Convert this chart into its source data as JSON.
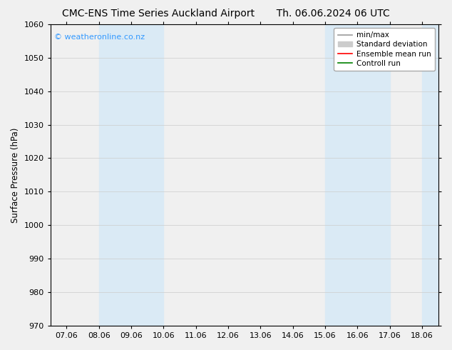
{
  "title_left": "CMC-ENS Time Series Auckland Airport",
  "title_right": "Th. 06.06.2024 06 UTC",
  "ylabel": "Surface Pressure (hPa)",
  "ylim": [
    970,
    1060
  ],
  "yticks": [
    970,
    980,
    990,
    1000,
    1010,
    1020,
    1030,
    1040,
    1050,
    1060
  ],
  "xtick_labels": [
    "07.06",
    "08.06",
    "09.06",
    "10.06",
    "11.06",
    "12.06",
    "13.06",
    "14.06",
    "15.06",
    "16.06",
    "17.06",
    "18.06"
  ],
  "xtick_positions": [
    0,
    1,
    2,
    3,
    4,
    5,
    6,
    7,
    8,
    9,
    10,
    11
  ],
  "xlim": [
    -0.5,
    11.5
  ],
  "shaded_bands": [
    {
      "xmin": 1,
      "xmax": 3,
      "color": "#daeaf5"
    },
    {
      "xmin": 8,
      "xmax": 10,
      "color": "#daeaf5"
    },
    {
      "xmin": 11,
      "xmax": 11.5,
      "color": "#daeaf5"
    }
  ],
  "watermark": "© weatheronline.co.nz",
  "watermark_color": "#3399ff",
  "plot_bg_color": "#f0f0f0",
  "fig_bg_color": "#f0f0f0",
  "legend_entries": [
    {
      "label": "min/max",
      "color": "#999999",
      "lw": 1.2,
      "style": "-"
    },
    {
      "label": "Standard deviation",
      "color": "#cccccc",
      "lw": 6,
      "style": "-"
    },
    {
      "label": "Ensemble mean run",
      "color": "#ff0000",
      "lw": 1.2,
      "style": "-"
    },
    {
      "label": "Controll run",
      "color": "#008000",
      "lw": 1.2,
      "style": "-"
    }
  ],
  "title_fontsize": 10,
  "axis_label_fontsize": 8.5,
  "tick_fontsize": 8,
  "legend_fontsize": 7.5,
  "watermark_fontsize": 8
}
